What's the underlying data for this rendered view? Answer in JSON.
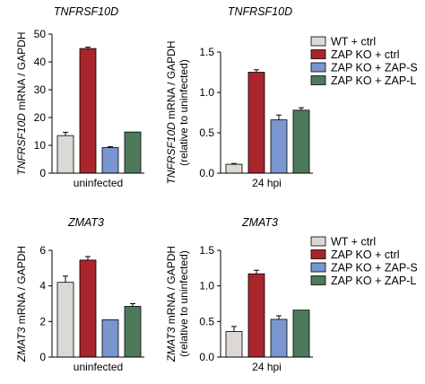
{
  "colors": {
    "wt_ctrl": "#dcd8d4",
    "zap_ko_ctrl": "#a8262b",
    "zap_ko_zap_s": "#7a96cf",
    "zap_ko_zap_l": "#4e7a5c"
  },
  "legend": {
    "items": [
      {
        "label": "WT + ctrl",
        "color": "#dcd8d4"
      },
      {
        "label": "ZAP KO + ctrl",
        "color": "#a8262b"
      },
      {
        "label": "ZAP KO + ZAP-S",
        "color": "#7a96cf"
      },
      {
        "label": "ZAP KO + ZAP-L",
        "color": "#4e7a5c"
      }
    ]
  },
  "chart_data": [
    {
      "type": "bar",
      "title": "TNFRSF10D",
      "ylabel_gene": "TNFRSF10D",
      "ylabel_rest": " mRNA / GAPDH",
      "ylabel_line2": "",
      "xlabel": "uninfected",
      "categories": [
        "WT + ctrl",
        "ZAP KO + ctrl",
        "ZAP KO + ZAP-S",
        "ZAP KO + ZAP-L"
      ],
      "values": [
        13.5,
        44.8,
        9.2,
        14.8
      ],
      "errors": [
        1.2,
        0.5,
        0.3,
        0.0
      ],
      "ylim": [
        0,
        50
      ],
      "yticks": [
        "0",
        "10",
        "20",
        "30",
        "40",
        "50"
      ]
    },
    {
      "type": "bar",
      "title": "TNFRSF10D",
      "ylabel_gene": "TNFRSF10D",
      "ylabel_rest": " mRNA / GAPDH",
      "ylabel_line2": "(relative to uninfected)",
      "xlabel": "24 hpi",
      "categories": [
        "WT + ctrl",
        "ZAP KO + ctrl",
        "ZAP KO + ZAP-S",
        "ZAP KO + ZAP-L"
      ],
      "values": [
        0.11,
        1.25,
        0.66,
        0.78
      ],
      "errors": [
        0.01,
        0.03,
        0.06,
        0.03
      ],
      "ylim": [
        0,
        1.5
      ],
      "yticks": [
        "0.0",
        "0.5",
        "1.0",
        "1.5"
      ]
    },
    {
      "type": "bar",
      "title": "ZMAT3",
      "ylabel_gene": "ZMAT3",
      "ylabel_rest": " mRNA / GAPDH",
      "ylabel_line2": "",
      "xlabel": "uninfected",
      "categories": [
        "WT + ctrl",
        "ZAP KO + ctrl",
        "ZAP KO + ZAP-S",
        "ZAP KO + ZAP-L"
      ],
      "values": [
        4.2,
        5.45,
        2.1,
        2.85
      ],
      "errors": [
        0.35,
        0.2,
        0.0,
        0.15
      ],
      "ylim": [
        0,
        6
      ],
      "yticks": [
        "0",
        "2",
        "4",
        "6"
      ]
    },
    {
      "type": "bar",
      "title": "ZMAT3",
      "ylabel_gene": "ZMAT3",
      "ylabel_rest": " mRNA / GAPDH",
      "ylabel_line2": "(relative to uninfected)",
      "xlabel": "24 hpi",
      "categories": [
        "WT + ctrl",
        "ZAP KO + ctrl",
        "ZAP KO + ZAP-S",
        "ZAP KO + ZAP-L"
      ],
      "values": [
        0.36,
        1.17,
        0.53,
        0.66
      ],
      "errors": [
        0.07,
        0.05,
        0.05,
        0.0
      ],
      "ylim": [
        0,
        1.5
      ],
      "yticks": [
        "0.0",
        "0.5",
        "1.0",
        "1.5"
      ]
    }
  ]
}
